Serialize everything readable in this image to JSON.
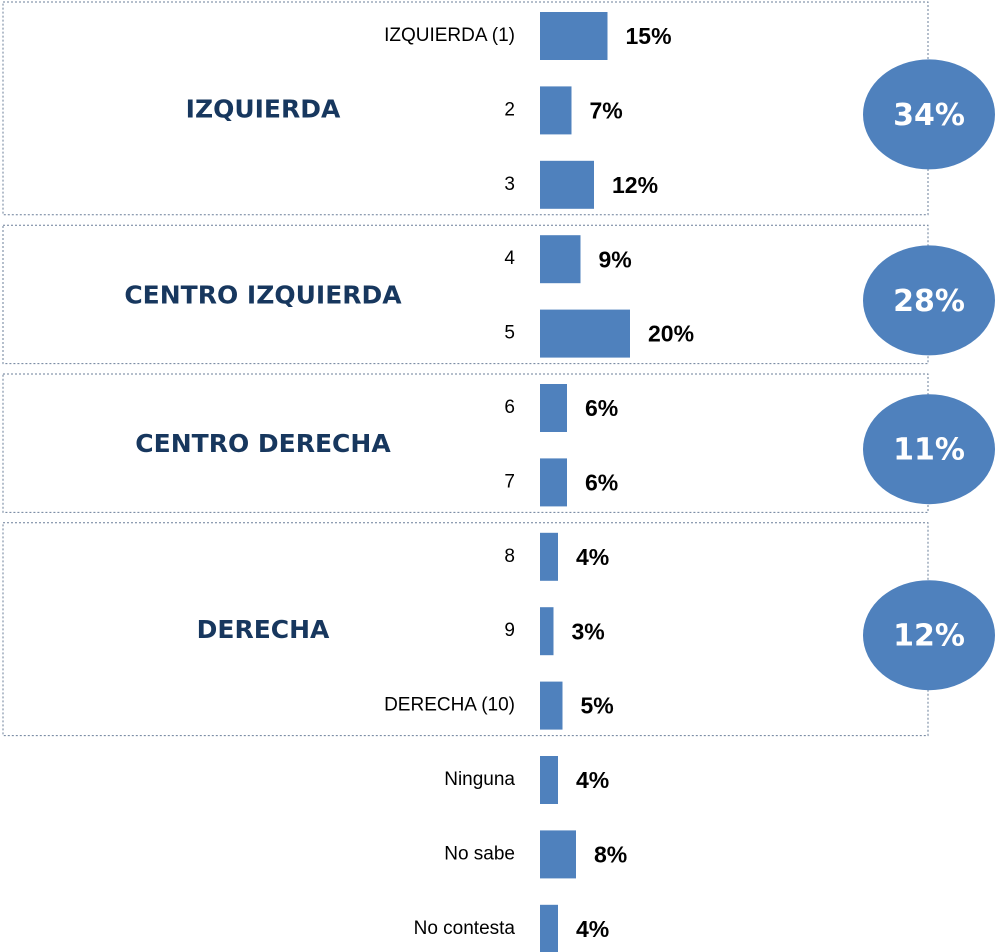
{
  "chart_data": {
    "type": "bar",
    "orientation": "horizontal",
    "color": "#4f81bd",
    "total_color": "#4f81bd",
    "group_label_color": "#17375e",
    "groups": [
      {
        "name": "IZQUIERDA",
        "total": 34,
        "total_label": "34%",
        "categories": [
          "IZQUIERDA (1)",
          "2",
          "3"
        ],
        "values": [
          15,
          7,
          12
        ],
        "value_labels": [
          "15%",
          "7%",
          "12%"
        ]
      },
      {
        "name": "CENTRO IZQUIERDA",
        "total": 28,
        "total_label": "28%",
        "categories": [
          "4",
          "5"
        ],
        "values": [
          9,
          20
        ],
        "value_labels": [
          "9%",
          "20%"
        ]
      },
      {
        "name": "CENTRO DERECHA",
        "total": 11,
        "total_label": "11%",
        "categories": [
          "6",
          "7"
        ],
        "values": [
          6,
          6
        ],
        "value_labels": [
          "6%",
          "6%"
        ]
      },
      {
        "name": "DERECHA",
        "total": 12,
        "total_label": "12%",
        "categories": [
          "8",
          "9",
          "DERECHA (10)"
        ],
        "values": [
          4,
          3,
          5
        ],
        "value_labels": [
          "4%",
          "3%",
          "5%"
        ]
      }
    ],
    "ungrouped": {
      "categories": [
        "Ninguna",
        "No sabe",
        "No contesta"
      ],
      "values": [
        4,
        8,
        4
      ],
      "value_labels": [
        "4%",
        "8%",
        "4%"
      ]
    }
  }
}
